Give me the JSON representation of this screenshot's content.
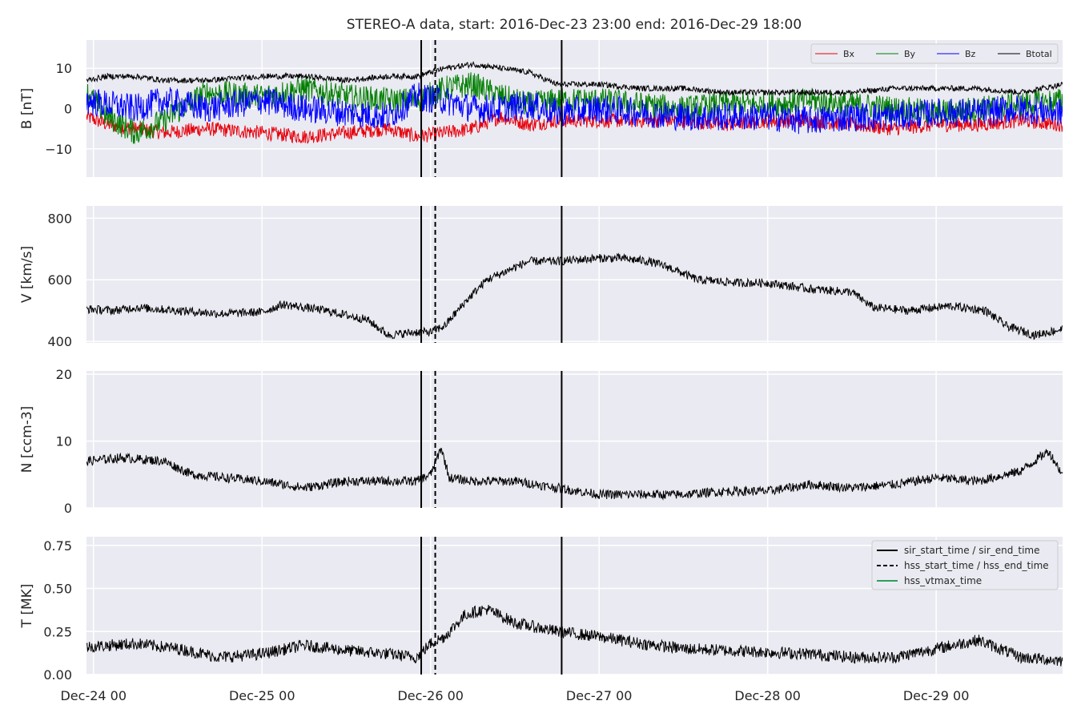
{
  "chart_data": {
    "type": "line",
    "title": "STEREO-A data, start: 2016-Dec-23 23:00  end: 2016-Dec-29 18:00",
    "x_unit": "time",
    "x_range": [
      "2016-12-23T23:00",
      "2016-12-29T18:00"
    ],
    "x_ticks": [
      {
        "t": "2016-12-24T00:00",
        "label": "Dec-24 00"
      },
      {
        "t": "2016-12-25T00:00",
        "label": "Dec-25 00"
      },
      {
        "t": "2016-12-26T00:00",
        "label": "Dec-26 00"
      },
      {
        "t": "2016-12-27T00:00",
        "label": "Dec-27 00"
      },
      {
        "t": "2016-12-28T00:00",
        "label": "Dec-28 00"
      },
      {
        "t": "2016-12-29T00:00",
        "label": "Dec-29 00"
      }
    ],
    "event_lines": {
      "sir_start_time": "2016-12-25T22:40",
      "hss_start_time": "2016-12-26T00:40",
      "sir_end_time": "2016-12-26T18:40"
    },
    "colors": {
      "Bx": "#e8000b",
      "By": "#007f00",
      "Bz": "#0000ff",
      "Btotal": "#000000",
      "V": "#000000",
      "N": "#000000",
      "T": "#000000",
      "hss_vtmax_time": "#2ca05a",
      "panel_bg": "#eaeaf2"
    },
    "panels": [
      {
        "id": "B",
        "ylabel": "B [nT]",
        "ylim": [
          -17,
          17
        ],
        "yticks": [
          -10,
          0,
          10
        ],
        "yticklabels": [
          "−10",
          "0",
          "10"
        ],
        "legend": {
          "placement": "top-right",
          "entries": [
            "Bx",
            "By",
            "Bz",
            "Btotal"
          ]
        },
        "series": [
          {
            "name": "Bx",
            "color": "#e8000b",
            "t": [
              "2016-12-23T23:00",
              "2016-12-24T02:00",
              "2016-12-24T06:00",
              "2016-12-24T10:00",
              "2016-12-24T16:00",
              "2016-12-25T00:00",
              "2016-12-25T06:00",
              "2016-12-25T12:00",
              "2016-12-25T18:00",
              "2016-12-25T22:00",
              "2016-12-26T02:00",
              "2016-12-26T06:00",
              "2016-12-26T10:00",
              "2016-12-26T14:00",
              "2016-12-26T18:00",
              "2016-12-27T00:00",
              "2016-12-27T06:00",
              "2016-12-27T12:00",
              "2016-12-27T18:00",
              "2016-12-28T00:00",
              "2016-12-28T06:00",
              "2016-12-28T12:00",
              "2016-12-28T18:00",
              "2016-12-29T00:00",
              "2016-12-29T06:00",
              "2016-12-29T12:00",
              "2016-12-29T18:00"
            ],
            "values": [
              -2,
              -4,
              -5,
              -6,
              -5,
              -6,
              -7,
              -6,
              -5,
              -7,
              -6,
              -5,
              -2,
              -4,
              -3,
              -3,
              -3,
              -3,
              -4,
              -3,
              -3,
              -4,
              -5,
              -4,
              -4,
              -3,
              -4
            ]
          },
          {
            "name": "By",
            "color": "#007f00",
            "t": [
              "2016-12-23T23:00",
              "2016-12-24T02:00",
              "2016-12-24T06:00",
              "2016-12-24T10:00",
              "2016-12-24T16:00",
              "2016-12-25T00:00",
              "2016-12-25T06:00",
              "2016-12-25T12:00",
              "2016-12-25T18:00",
              "2016-12-25T22:00",
              "2016-12-26T02:00",
              "2016-12-26T06:00",
              "2016-12-26T10:00",
              "2016-12-26T14:00",
              "2016-12-26T18:00",
              "2016-12-27T00:00",
              "2016-12-27T06:00",
              "2016-12-27T12:00",
              "2016-12-27T18:00",
              "2016-12-28T00:00",
              "2016-12-28T06:00",
              "2016-12-28T12:00",
              "2016-12-28T18:00",
              "2016-12-29T00:00",
              "2016-12-29T06:00",
              "2016-12-29T12:00",
              "2016-12-29T18:00"
            ],
            "values": [
              4,
              -2,
              -6,
              -3,
              4,
              3,
              5,
              3,
              2,
              2,
              5,
              6,
              3,
              1,
              2,
              2,
              1,
              0,
              1,
              1,
              2,
              1,
              0,
              -1,
              0,
              1,
              2
            ]
          },
          {
            "name": "Bz",
            "color": "#0000ff",
            "t": [
              "2016-12-23T23:00",
              "2016-12-24T02:00",
              "2016-12-24T06:00",
              "2016-12-24T10:00",
              "2016-12-24T16:00",
              "2016-12-25T00:00",
              "2016-12-25T06:00",
              "2016-12-25T12:00",
              "2016-12-25T18:00",
              "2016-12-25T22:00",
              "2016-12-26T02:00",
              "2016-12-26T06:00",
              "2016-12-26T10:00",
              "2016-12-26T14:00",
              "2016-12-26T18:00",
              "2016-12-27T00:00",
              "2016-12-27T06:00",
              "2016-12-27T12:00",
              "2016-12-27T18:00",
              "2016-12-28T00:00",
              "2016-12-28T06:00",
              "2016-12-28T12:00",
              "2016-12-28T18:00",
              "2016-12-29T00:00",
              "2016-12-29T06:00",
              "2016-12-29T12:00",
              "2016-12-29T18:00"
            ],
            "values": [
              2,
              1,
              0,
              2,
              0,
              2,
              0,
              -1,
              -2,
              3,
              2,
              0,
              0,
              1,
              -1,
              0,
              -1,
              -2,
              -2,
              -2,
              -3,
              -2,
              -2,
              -1,
              -1,
              0,
              -1
            ]
          },
          {
            "name": "Btotal",
            "color": "#000000",
            "t": [
              "2016-12-23T23:00",
              "2016-12-24T02:00",
              "2016-12-24T06:00",
              "2016-12-24T10:00",
              "2016-12-24T16:00",
              "2016-12-25T00:00",
              "2016-12-25T06:00",
              "2016-12-25T12:00",
              "2016-12-25T18:00",
              "2016-12-25T22:00",
              "2016-12-26T02:00",
              "2016-12-26T06:00",
              "2016-12-26T10:00",
              "2016-12-26T14:00",
              "2016-12-26T18:00",
              "2016-12-27T00:00",
              "2016-12-27T06:00",
              "2016-12-27T12:00",
              "2016-12-27T18:00",
              "2016-12-28T00:00",
              "2016-12-28T06:00",
              "2016-12-28T12:00",
              "2016-12-28T18:00",
              "2016-12-29T00:00",
              "2016-12-29T06:00",
              "2016-12-29T12:00",
              "2016-12-29T18:00"
            ],
            "values": [
              7,
              8,
              8,
              7,
              7,
              8,
              8,
              7,
              8,
              8,
              10,
              11,
              10,
              9,
              6,
              6,
              5,
              5,
              4,
              4,
              4,
              4,
              5,
              5,
              5,
              4,
              6
            ]
          }
        ]
      },
      {
        "id": "V",
        "ylabel": "V [km/s]",
        "ylim": [
          395,
          840
        ],
        "yticks": [
          400,
          600,
          800
        ],
        "yticklabels": [
          "400",
          "600",
          "800"
        ],
        "series": [
          {
            "name": "V",
            "color": "#000000",
            "t": [
              "2016-12-23T23:00",
              "2016-12-24T03:00",
              "2016-12-24T06:00",
              "2016-12-24T12:00",
              "2016-12-24T18:00",
              "2016-12-25T00:00",
              "2016-12-25T03:00",
              "2016-12-25T09:00",
              "2016-12-25T15:00",
              "2016-12-25T18:00",
              "2016-12-25T22:00",
              "2016-12-26T00:00",
              "2016-12-26T02:00",
              "2016-12-26T05:00",
              "2016-12-26T08:00",
              "2016-12-26T11:00",
              "2016-12-26T14:00",
              "2016-12-26T18:00",
              "2016-12-27T00:00",
              "2016-12-27T03:00",
              "2016-12-27T07:00",
              "2016-12-27T10:00",
              "2016-12-27T14:00",
              "2016-12-27T20:00",
              "2016-12-28T00:00",
              "2016-12-28T06:00",
              "2016-12-28T12:00",
              "2016-12-28T15:00",
              "2016-12-28T20:00",
              "2016-12-29T02:00",
              "2016-12-29T07:00",
              "2016-12-29T10:00",
              "2016-12-29T14:00",
              "2016-12-29T18:00"
            ],
            "values": [
              505,
              500,
              510,
              500,
              490,
              495,
              520,
              500,
              470,
              420,
              430,
              430,
              450,
              530,
              600,
              630,
              660,
              660,
              670,
              670,
              660,
              640,
              600,
              590,
              590,
              570,
              560,
              510,
              500,
              515,
              500,
              450,
              420,
              440
            ]
          }
        ]
      },
      {
        "id": "N",
        "ylabel": "N [ccm-3]",
        "ylim": [
          0,
          20.5
        ],
        "yticks": [
          0,
          10,
          20
        ],
        "yticklabels": [
          "0",
          "10",
          "20"
        ],
        "series": [
          {
            "name": "N",
            "color": "#000000",
            "t": [
              "2016-12-23T23:00",
              "2016-12-24T04:00",
              "2016-12-24T10:00",
              "2016-12-24T14:00",
              "2016-12-25T00:00",
              "2016-12-25T06:00",
              "2016-12-25T12:00",
              "2016-12-25T18:00",
              "2016-12-25T22:00",
              "2016-12-26T00:00",
              "2016-12-26T01:30",
              "2016-12-26T02:40",
              "2016-12-26T06:00",
              "2016-12-26T12:00",
              "2016-12-26T18:00",
              "2016-12-27T00:00",
              "2016-12-27T06:00",
              "2016-12-27T12:00",
              "2016-12-27T18:00",
              "2016-12-28T00:00",
              "2016-12-28T06:00",
              "2016-12-28T12:00",
              "2016-12-28T18:00",
              "2016-12-29T00:00",
              "2016-12-29T06:00",
              "2016-12-29T12:00",
              "2016-12-29T16:00",
              "2016-12-29T18:00"
            ],
            "values": [
              7,
              7.5,
              7,
              5,
              4,
              3,
              4,
              4,
              4,
              5,
              9,
              4.5,
              4,
              4,
              3,
              2,
              2,
              2,
              2.5,
              2.5,
              3.5,
              3,
              3.5,
              4.5,
              4,
              5.5,
              8.5,
              5
            ]
          }
        ]
      },
      {
        "id": "T",
        "ylabel": "T [MK]",
        "ylim": [
          0,
          0.8
        ],
        "yticks": [
          0.0,
          0.25,
          0.5,
          0.75
        ],
        "yticklabels": [
          "0.00",
          "0.25",
          "0.50",
          "0.75"
        ],
        "legend": {
          "placement": "top-right",
          "entries": [
            {
              "label": "sir_start_time / sir_end_time",
              "style": "solid",
              "color": "#000000"
            },
            {
              "label": "hss_start_time / hss_end_time",
              "style": "dashed",
              "color": "#000000"
            },
            {
              "label": "hss_vtmax_time",
              "style": "solid",
              "color": "#2ca05a"
            }
          ]
        },
        "series": [
          {
            "name": "T",
            "color": "#000000",
            "t": [
              "2016-12-23T23:00",
              "2016-12-24T06:00",
              "2016-12-24T12:00",
              "2016-12-24T18:00",
              "2016-12-25T00:00",
              "2016-12-25T06:00",
              "2016-12-25T12:00",
              "2016-12-25T18:00",
              "2016-12-25T22:00",
              "2016-12-26T00:00",
              "2016-12-26T02:00",
              "2016-12-26T05:00",
              "2016-12-26T08:00",
              "2016-12-26T12:00",
              "2016-12-26T18:00",
              "2016-12-27T00:00",
              "2016-12-27T06:00",
              "2016-12-27T12:00",
              "2016-12-27T18:00",
              "2016-12-28T00:00",
              "2016-12-28T06:00",
              "2016-12-28T12:00",
              "2016-12-28T18:00",
              "2016-12-29T00:00",
              "2016-12-29T06:00",
              "2016-12-29T12:00",
              "2016-12-29T18:00"
            ],
            "values": [
              0.16,
              0.18,
              0.15,
              0.1,
              0.12,
              0.17,
              0.14,
              0.12,
              0.1,
              0.18,
              0.22,
              0.35,
              0.38,
              0.3,
              0.25,
              0.22,
              0.18,
              0.15,
              0.14,
              0.13,
              0.12,
              0.1,
              0.1,
              0.15,
              0.2,
              0.1,
              0.08
            ]
          }
        ]
      }
    ]
  }
}
